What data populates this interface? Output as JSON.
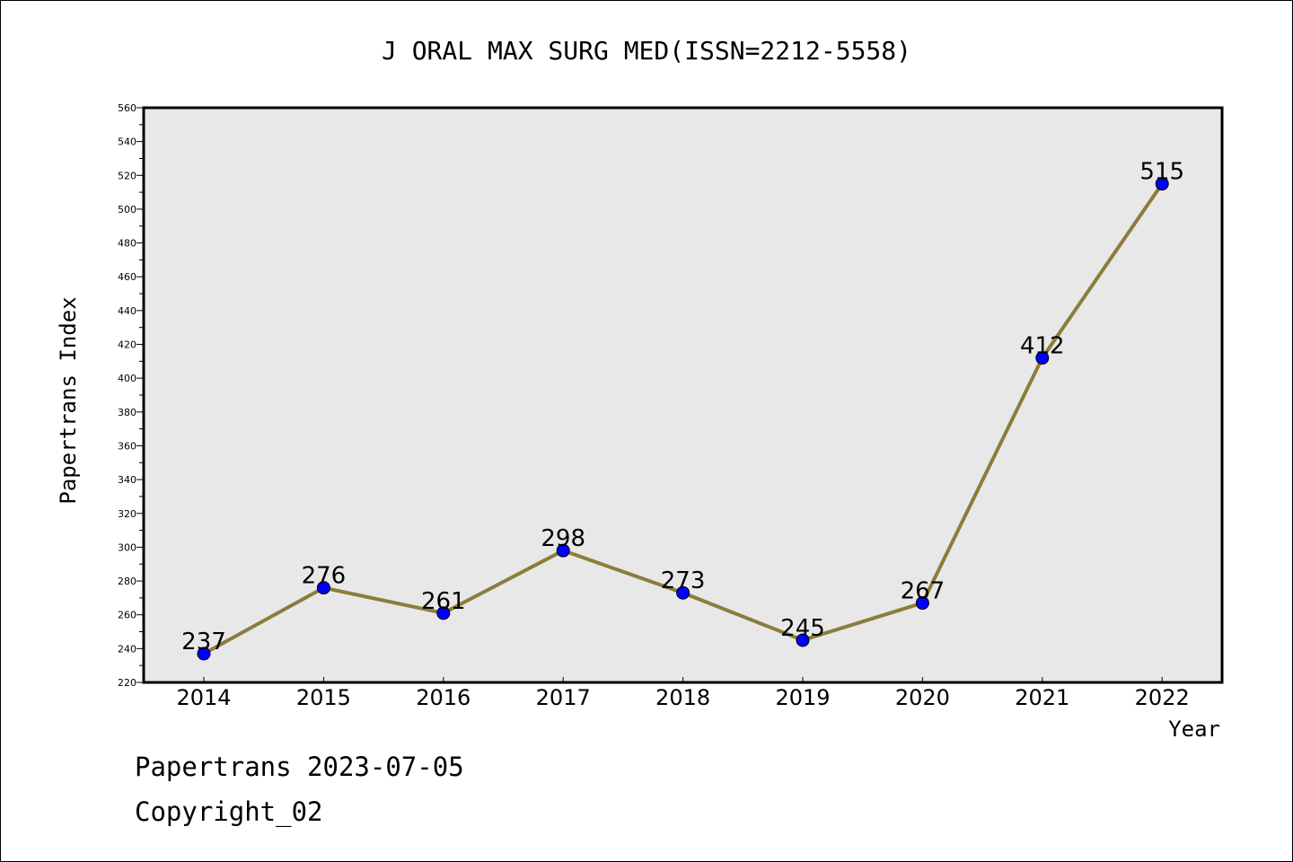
{
  "chart_data": {
    "type": "line",
    "title": "J ORAL MAX SURG MED(ISSN=2212-5558)",
    "xlabel": "Year",
    "ylabel": "Papertrans Index",
    "categories": [
      "2014",
      "2015",
      "2016",
      "2017",
      "2018",
      "2019",
      "2020",
      "2021",
      "2022"
    ],
    "values": [
      237,
      276,
      261,
      298,
      273,
      245,
      267,
      412,
      515
    ],
    "data_labels": [
      "237",
      "276",
      "261",
      "298",
      "273",
      "245",
      "267",
      "412",
      "515"
    ],
    "ylim": [
      220,
      560
    ],
    "yticks": [
      "220",
      "240",
      "260",
      "280",
      "300",
      "320",
      "340",
      "360",
      "380",
      "400",
      "420",
      "440",
      "460",
      "480",
      "500",
      "520",
      "540",
      "560"
    ],
    "grid": false,
    "legend": "none",
    "colors": {
      "line": "#8b7d3a",
      "marker": "#0000ff",
      "plot_background": "#e8e8e8"
    }
  },
  "footer": {
    "line1": "Papertrans 2023-07-05",
    "line2": "Copyright_02"
  }
}
